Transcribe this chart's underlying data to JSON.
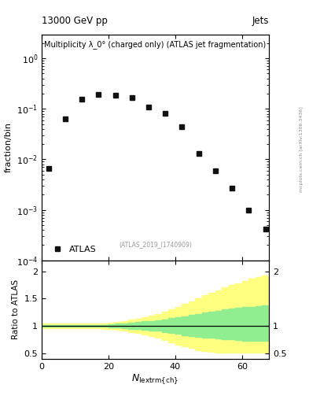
{
  "title_left": "13000 GeV pp",
  "title_right": "Jets",
  "plot_title": "Multiplicity λ_0° (charged only) (ATLAS jet fragmentation)",
  "ylabel_main": "fraction/bin",
  "ylabel_ratio": "Ratio to ATLAS",
  "xlabel": "$N_{\\mathrm{lextrm|ch|}}$",
  "watermark": "(ATLAS_2019_I1740909)",
  "right_label": "mcplots.cern.ch [arXiv:1306.3436]",
  "legend_label": "ATLAS",
  "data_x": [
    2,
    7,
    12,
    17,
    22,
    27,
    32,
    37,
    42,
    47,
    52,
    57,
    62,
    67
  ],
  "data_y": [
    0.0065,
    0.063,
    0.155,
    0.195,
    0.185,
    0.165,
    0.11,
    0.082,
    0.045,
    0.013,
    0.006,
    0.0027,
    0.001,
    0.00042
  ],
  "ratio_x": [
    0,
    2,
    4,
    6,
    8,
    10,
    12,
    14,
    16,
    18,
    20,
    22,
    24,
    26,
    28,
    30,
    32,
    34,
    36,
    38,
    40,
    42,
    44,
    46,
    48,
    50,
    52,
    54,
    56,
    58,
    60,
    62,
    64,
    66,
    68
  ],
  "ratio_green_upper": [
    1.02,
    1.02,
    1.02,
    1.02,
    1.02,
    1.02,
    1.02,
    1.02,
    1.02,
    1.02,
    1.03,
    1.04,
    1.05,
    1.06,
    1.07,
    1.08,
    1.09,
    1.1,
    1.12,
    1.14,
    1.16,
    1.18,
    1.2,
    1.22,
    1.24,
    1.26,
    1.28,
    1.3,
    1.32,
    1.33,
    1.34,
    1.35,
    1.36,
    1.37,
    1.37
  ],
  "ratio_green_lower": [
    0.98,
    0.98,
    0.98,
    0.98,
    0.98,
    0.98,
    0.98,
    0.98,
    0.98,
    0.98,
    0.97,
    0.97,
    0.96,
    0.95,
    0.94,
    0.93,
    0.92,
    0.91,
    0.89,
    0.87,
    0.85,
    0.83,
    0.81,
    0.8,
    0.79,
    0.78,
    0.77,
    0.76,
    0.75,
    0.74,
    0.73,
    0.73,
    0.73,
    0.73,
    0.73
  ],
  "ratio_yellow_upper": [
    1.04,
    1.04,
    1.04,
    1.04,
    1.04,
    1.04,
    1.04,
    1.04,
    1.04,
    1.05,
    1.06,
    1.07,
    1.09,
    1.11,
    1.13,
    1.16,
    1.19,
    1.22,
    1.26,
    1.3,
    1.35,
    1.4,
    1.45,
    1.5,
    1.56,
    1.61,
    1.65,
    1.7,
    1.75,
    1.78,
    1.82,
    1.86,
    1.9,
    1.93,
    1.93
  ],
  "ratio_yellow_lower": [
    0.96,
    0.96,
    0.96,
    0.96,
    0.96,
    0.96,
    0.96,
    0.96,
    0.96,
    0.95,
    0.94,
    0.93,
    0.91,
    0.89,
    0.87,
    0.84,
    0.81,
    0.78,
    0.74,
    0.7,
    0.66,
    0.62,
    0.59,
    0.56,
    0.54,
    0.52,
    0.51,
    0.51,
    0.51,
    0.51,
    0.51,
    0.51,
    0.51,
    0.51,
    0.51
  ],
  "ylim_main": [
    0.0001,
    3
  ],
  "ylim_ratio": [
    0.4,
    2.2
  ],
  "xlim": [
    0,
    68
  ],
  "marker_color": "#111111",
  "marker_style": "s",
  "marker_size": 4,
  "green_color": "#90EE90",
  "yellow_color": "#FFFF80",
  "bg_color": "white"
}
